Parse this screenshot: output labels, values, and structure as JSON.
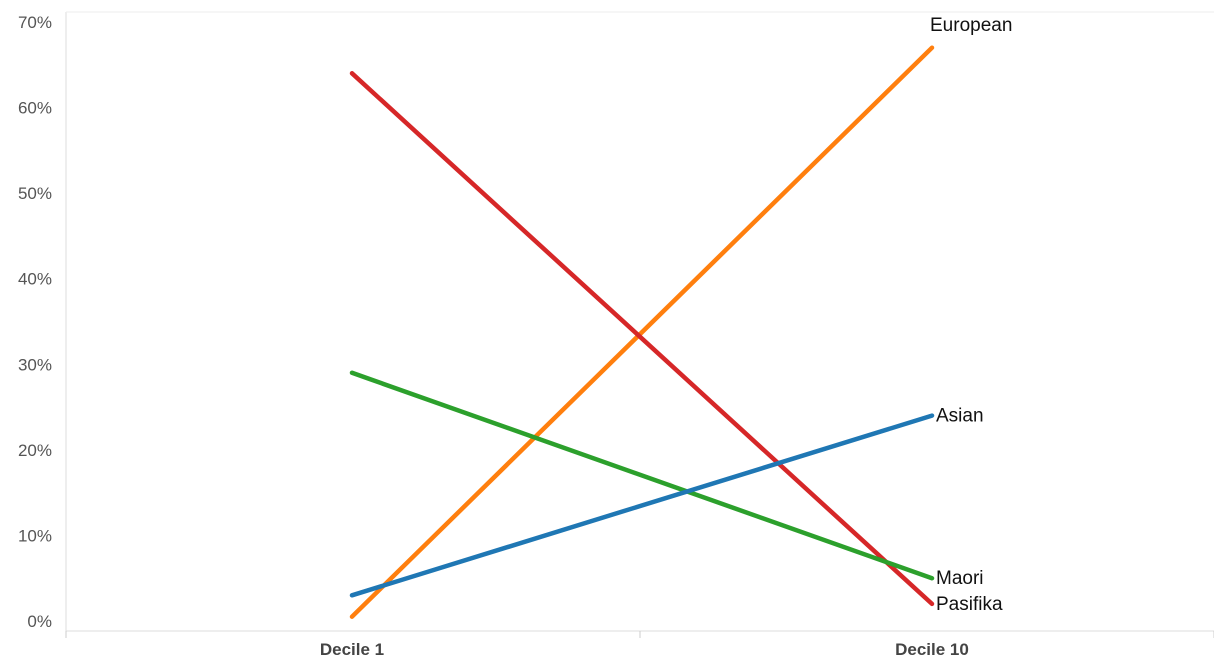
{
  "chart_data": {
    "type": "line",
    "categories": [
      "Decile 1",
      "Decile 10"
    ],
    "ylim": [
      0,
      70
    ],
    "yticks": [
      0,
      10,
      20,
      30,
      40,
      50,
      60,
      70
    ],
    "ytick_labels": [
      "0%",
      "10%",
      "20%",
      "30%",
      "40%",
      "50%",
      "60%",
      "70%"
    ],
    "grid": false,
    "series": [
      {
        "name": "European",
        "color": "#ff7f0e",
        "values": [
          0.5,
          67
        ]
      },
      {
        "name": "Pasifika",
        "color": "#d62728",
        "values": [
          64,
          2
        ]
      },
      {
        "name": "Maori",
        "color": "#2ca02c",
        "values": [
          29,
          5
        ]
      },
      {
        "name": "Asian",
        "color": "#1f77b4",
        "values": [
          3,
          24
        ]
      }
    ]
  }
}
